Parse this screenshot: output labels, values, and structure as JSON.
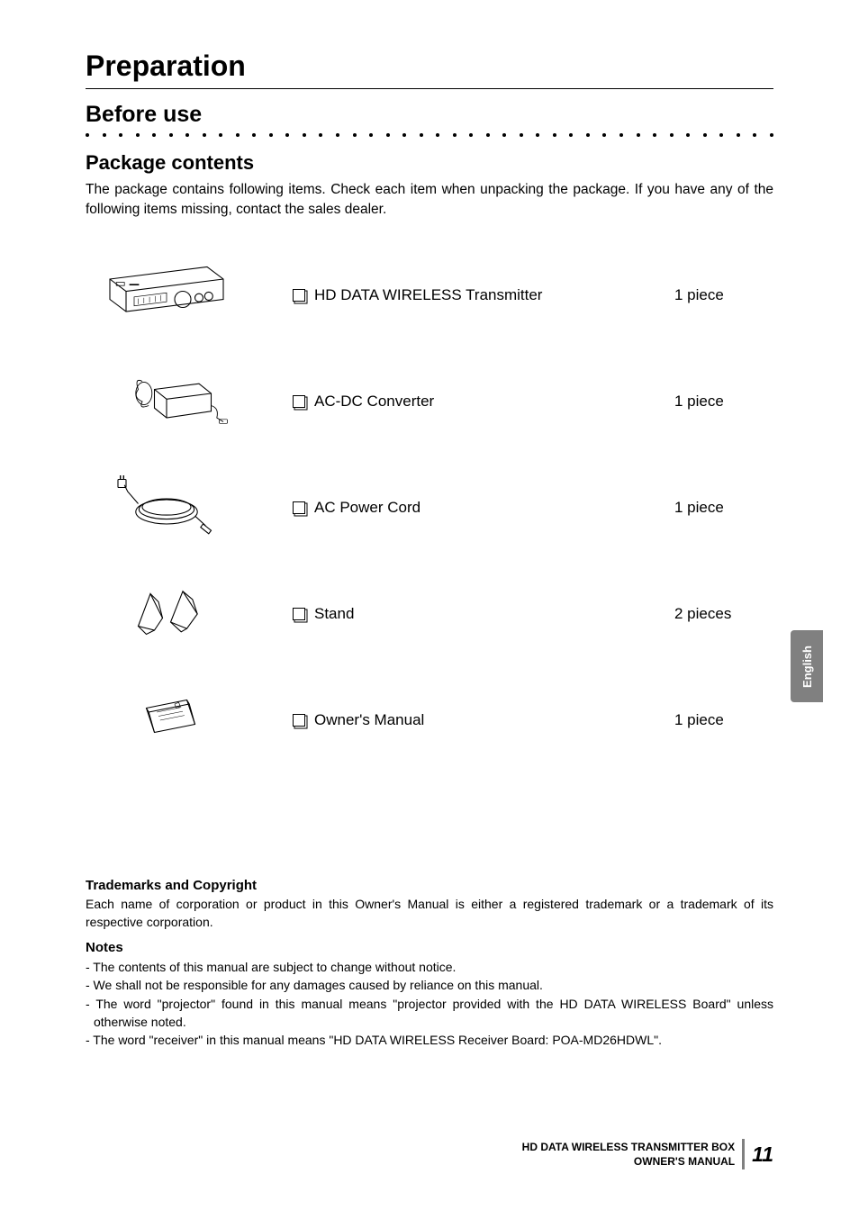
{
  "colors": {
    "text": "#000000",
    "background": "#ffffff",
    "tab_bg": "#808080",
    "tab_text": "#ffffff",
    "divider": "#808080"
  },
  "typography": {
    "main_title_size": 32,
    "section_title_size": 25,
    "subsection_title_size": 22,
    "body_size": 15.5,
    "item_size": 17,
    "small_size": 14,
    "footer_size": 12,
    "page_num_size": 23
  },
  "main_title": "Preparation",
  "section_title": "Before use",
  "subsection_title": "Package contents",
  "intro": "The package contains following items. Check each item when unpacking the package. If you have any of the following items missing, contact the sales dealer.",
  "items": [
    {
      "label": "HD DATA WIRELESS Transmitter",
      "qty": "1 piece"
    },
    {
      "label": "AC-DC Converter",
      "qty": "1 piece"
    },
    {
      "label": "AC Power Cord",
      "qty": "1 piece"
    },
    {
      "label": "Stand",
      "qty": "2 pieces"
    },
    {
      "label": "Owner's Manual",
      "qty": "1 piece"
    }
  ],
  "trademarks": {
    "heading": "Trademarks and Copyright",
    "body": "Each name of corporation or product in this Owner's Manual is either a registered trademark or a trademark of its respective corporation."
  },
  "notes": {
    "heading": "Notes",
    "list": [
      "- The contents of this manual are subject to change without notice.",
      "- We shall not be responsible for any damages caused by reliance on this manual.",
      "- The word \"projector\" found in this manual means \"projector provided with the HD DATA WIRELESS Board\" unless otherwise noted.",
      "- The word \"receiver\" in this manual means \"HD DATA WIRELESS Receiver Board: POA-MD26HDWL\"."
    ]
  },
  "side_tab": "English",
  "footer": {
    "line1": "HD DATA WIRELESS TRANSMITTER BOX",
    "line2": "OWNER'S MANUAL",
    "page": "11"
  },
  "dot_count": 42
}
